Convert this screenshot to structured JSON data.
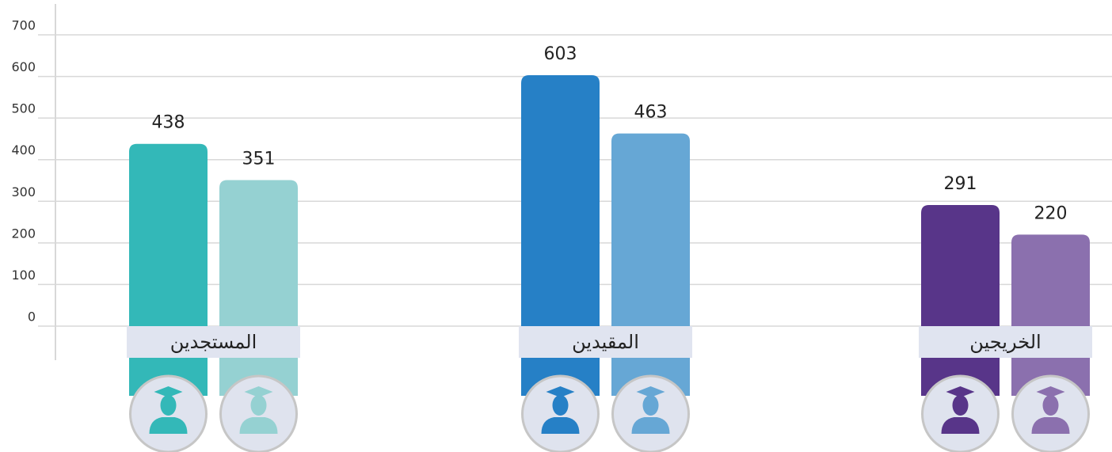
{
  "chart_data": {
    "type": "bar",
    "categories": [
      "المستجدين",
      "المقيدين",
      "الخريجين"
    ],
    "series": [
      {
        "values": [
          438,
          603,
          291
        ],
        "colors": [
          "#33b8b8",
          "#2680c6",
          "#583589"
        ]
      },
      {
        "values": [
          351,
          463,
          220
        ],
        "colors": [
          "#95d1d2",
          "#66a7d5",
          "#8b70ae"
        ]
      }
    ],
    "ylim": [
      0,
      700
    ],
    "yticks": [
      0,
      100,
      200,
      300,
      400,
      500,
      600,
      700
    ],
    "grid": true
  }
}
